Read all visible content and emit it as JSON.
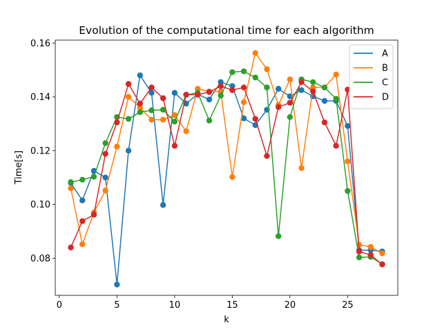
{
  "chart_data": {
    "type": "line",
    "title": "Evolution of the computational time for each algorithm",
    "xlabel": "k",
    "ylabel": "Time[s]",
    "xlim": [
      -0.35,
      29.35
    ],
    "ylim": [
      0.0662,
      0.1611
    ],
    "xticks": [
      0,
      5,
      10,
      15,
      20,
      25
    ],
    "yticks": [
      0.08,
      0.1,
      0.12,
      0.14,
      0.16
    ],
    "ytick_labels": [
      "0.08",
      "0.10",
      "0.12",
      "0.14",
      "0.16"
    ],
    "grid": false,
    "legend_position": "top-right",
    "markers": "circle",
    "x": [
      1,
      2,
      3,
      4,
      5,
      6,
      7,
      8,
      9,
      10,
      11,
      12,
      13,
      14,
      15,
      16,
      17,
      18,
      19,
      20,
      21,
      22,
      23,
      24,
      25,
      26,
      27,
      28
    ],
    "series": [
      {
        "name": "A",
        "color": "#1f77b4",
        "values": [
          0.108,
          0.1015,
          0.1125,
          0.11,
          0.0702,
          0.12,
          0.148,
          0.1415,
          0.0998,
          0.1415,
          0.1375,
          0.141,
          0.139,
          0.1455,
          0.144,
          0.132,
          0.1295,
          0.1352,
          0.143,
          0.1402,
          0.1425,
          0.1402,
          0.1385,
          0.1385,
          0.1292,
          0.083,
          0.083,
          0.0825
        ]
      },
      {
        "name": "B",
        "color": "#ff7f0e",
        "values": [
          0.106,
          0.0852,
          0.097,
          0.1052,
          0.1215,
          0.14,
          0.136,
          0.1315,
          0.1315,
          0.1332,
          0.1272,
          0.143,
          0.142,
          0.142,
          0.1102,
          0.138,
          0.1563,
          0.1503,
          0.137,
          0.1465,
          0.1135,
          0.1435,
          0.1435,
          0.1483,
          0.116,
          0.085,
          0.0842,
          0.0818
        ]
      },
      {
        "name": "C",
        "color": "#2ca02c",
        "values": [
          0.1083,
          0.1092,
          0.1103,
          0.1228,
          0.1325,
          0.1318,
          0.1343,
          0.135,
          0.1352,
          0.1308,
          0.1408,
          0.1415,
          0.1312,
          0.1405,
          0.1492,
          0.1495,
          0.1472,
          0.1435,
          0.0882,
          0.1325,
          0.1465,
          0.1455,
          0.1435,
          0.1393,
          0.105,
          0.0803,
          0.0805,
          0.0778
        ]
      },
      {
        "name": "D",
        "color": "#d62728",
        "values": [
          0.084,
          0.0938,
          0.0962,
          0.1188,
          0.1305,
          0.1448,
          0.1375,
          0.1435,
          0.1395,
          0.1218,
          0.1408,
          0.1408,
          0.1418,
          0.144,
          0.1425,
          0.1435,
          0.1318,
          0.118,
          0.1362,
          0.1378,
          0.1455,
          0.142,
          0.1305,
          0.1218,
          0.1427,
          0.0825,
          0.0812,
          0.0777
        ]
      }
    ]
  }
}
